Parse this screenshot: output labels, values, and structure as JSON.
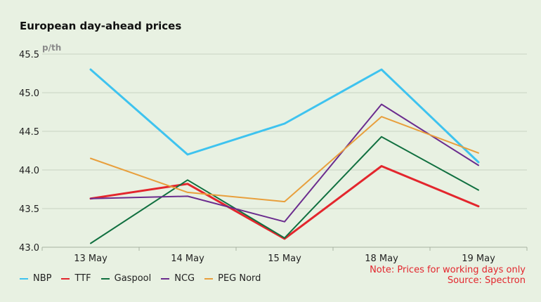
{
  "chart_data": {
    "type": "line",
    "title": "European day-ahead prices",
    "ylabel": "p/th",
    "xlabel": "",
    "categories": [
      "13 May",
      "14 May",
      "15 May",
      "18 May",
      "19 May"
    ],
    "ylim": [
      43.0,
      45.5
    ],
    "yticks": [
      "43.0",
      "43.5",
      "44.0",
      "44.5",
      "45.0",
      "45.5"
    ],
    "grid": "horizontal",
    "legend_position": "bottom-left",
    "series": [
      {
        "name": "NBP",
        "color": "#3ec3ef",
        "width": 3,
        "values": [
          45.3,
          44.2,
          44.6,
          45.3,
          44.1
        ]
      },
      {
        "name": "TTF",
        "color": "#e3262d",
        "width": 3,
        "values": [
          43.63,
          43.82,
          43.11,
          44.05,
          43.53
        ]
      },
      {
        "name": "Gaspool",
        "color": "#117040",
        "width": 2,
        "values": [
          43.05,
          43.87,
          43.12,
          44.43,
          43.74
        ]
      },
      {
        "name": "NCG",
        "color": "#6b2c8e",
        "width": 2,
        "values": [
          43.63,
          43.66,
          43.33,
          44.85,
          44.06
        ]
      },
      {
        "name": "PEG Nord",
        "color": "#e89f3c",
        "width": 2,
        "values": [
          44.15,
          43.71,
          43.59,
          44.69,
          44.22
        ]
      }
    ],
    "notes": [
      "Note: Prices for working days only",
      "Source: Spectron"
    ]
  }
}
